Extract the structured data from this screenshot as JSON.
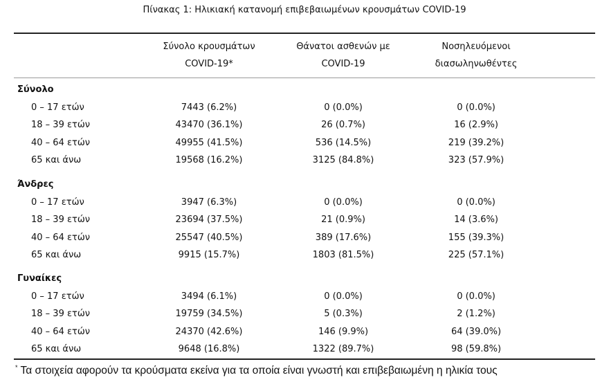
{
  "title": "Πίνακας 1: Ηλικιακή κατανομή επιβεβαιωμένων κρουσμάτων COVID-19",
  "table": {
    "headers": [
      "Σύνολο κρουσμάτων COVID-19*",
      "Θάνατοι ασθενών με COVID-19",
      "Νοσηλευόμενοι διασωληνωθέντες"
    ],
    "groups": [
      {
        "name": "Σύνολο",
        "rows": [
          [
            "0 – 17 ετών",
            "7443 (6.2%)",
            "0 (0.0%)",
            "0 (0.0%)"
          ],
          [
            "18 – 39 ετών",
            "43470 (36.1%)",
            "26 (0.7%)",
            "16 (2.9%)"
          ],
          [
            "40 – 64 ετών",
            "49955 (41.5%)",
            "536 (14.5%)",
            "219 (39.2%)"
          ],
          [
            "65 και άνω",
            "19568 (16.2%)",
            "3125 (84.8%)",
            "323 (57.9%)"
          ]
        ]
      },
      {
        "name": "Άνδρες",
        "rows": [
          [
            "0 – 17 ετών",
            "3947 (6.3%)",
            "0 (0.0%)",
            "0 (0.0%)"
          ],
          [
            "18 – 39 ετών",
            "23694 (37.5%)",
            "21 (0.9%)",
            "14 (3.6%)"
          ],
          [
            "40 – 64 ετών",
            "25547 (40.5%)",
            "389 (17.6%)",
            "155 (39.3%)"
          ],
          [
            "65 και άνω",
            "9915 (15.7%)",
            "1803 (81.5%)",
            "225 (57.1%)"
          ]
        ]
      },
      {
        "name": "Γυναίκες",
        "rows": [
          [
            "0 – 17 ετών",
            "3494 (6.1%)",
            "0 (0.0%)",
            "0 (0.0%)"
          ],
          [
            "18 – 39 ετών",
            "19759 (34.5%)",
            "5 (0.3%)",
            "2 (1.2%)"
          ],
          [
            "40 – 64 ετών",
            "24370 (42.6%)",
            "146 (9.9%)",
            "64 (39.0%)"
          ],
          [
            "65 και άνω",
            "9648 (16.8%)",
            "1322 (89.7%)",
            "98 (59.8%)"
          ]
        ]
      }
    ]
  },
  "footnote": {
    "marker": "*",
    "text": "Τα στοιχεία αφορούν τα κρούσματα εκείνα για τα οποία είναι γνωστή και επιβεβαιωμένη η ηλικία τους"
  }
}
